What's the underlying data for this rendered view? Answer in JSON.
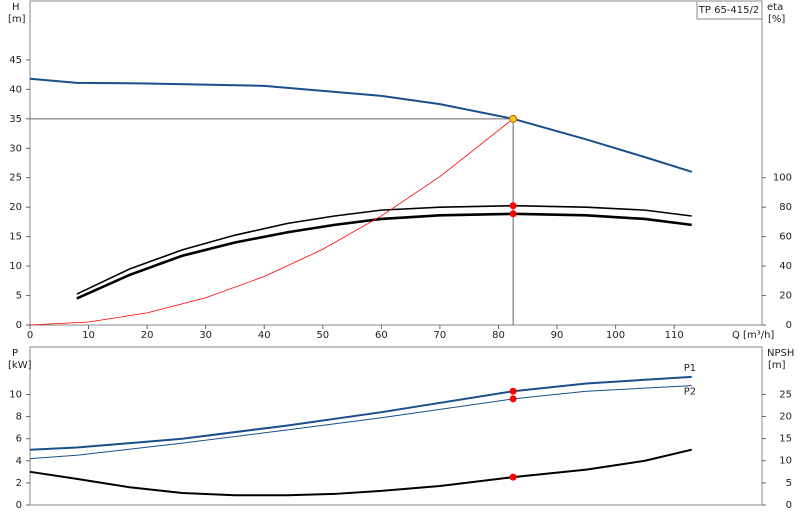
{
  "chart_data": [
    {
      "type": "line",
      "title": "TP 65-415/2",
      "xlabel": "Q [m³/h]",
      "ylabel": "H",
      "yunit": "[m]",
      "y2label": "eta",
      "y2unit": "[%]",
      "xlim": [
        0,
        125
      ],
      "xticks": [
        0,
        10,
        20,
        30,
        40,
        50,
        60,
        70,
        80,
        90,
        100,
        110
      ],
      "ylim": [
        0,
        55
      ],
      "yticks": [
        0,
        5,
        10,
        15,
        20,
        25,
        30,
        35,
        40,
        45
      ],
      "y2lim": [
        0,
        220
      ],
      "y2ticks": [
        0,
        20,
        40,
        60,
        80,
        100
      ],
      "series": [
        {
          "color": "#1a4f8b",
          "x": [
            0,
            8,
            20,
            40,
            60,
            70,
            82.5,
            95,
            105,
            113
          ],
          "values": [
            41.8,
            41.1,
            41,
            40.6,
            38.9,
            37.5,
            35,
            31.5,
            28.5,
            26
          ]
        },
        {
          "color": "#000000",
          "axis": "y2",
          "x": [
            8,
            17,
            26,
            35,
            44,
            52,
            60,
            70,
            82.5,
            95,
            105,
            113
          ],
          "values": [
            21,
            38,
            51,
            61,
            69,
            74,
            78,
            80,
            81,
            80,
            78,
            74
          ]
        },
        {
          "color": "#000000",
          "axis": "y2",
          "x": [
            8,
            17,
            26,
            35,
            44,
            52,
            60,
            70,
            82.5,
            95,
            105,
            113
          ],
          "values": [
            18,
            34,
            47,
            56,
            63,
            68,
            72,
            74.5,
            75.5,
            74.5,
            72,
            68
          ]
        },
        {
          "color": "#ff0000",
          "x": [
            0,
            10,
            20,
            30,
            40,
            50,
            60,
            70,
            82.5
          ],
          "values": [
            0,
            0.51,
            2.06,
            4.63,
            8.23,
            12.86,
            18.51,
            25.2,
            35
          ]
        }
      ],
      "points": [
        {
          "x": 82.5,
          "y": 35,
          "color": "#f5c518"
        },
        {
          "x": 82.5,
          "y": 81,
          "axis": "y2",
          "color": "#ff0000"
        },
        {
          "x": 82.5,
          "y": 75.5,
          "axis": "y2",
          "color": "#ff0000"
        }
      ]
    },
    {
      "type": "line",
      "ylabel": "P",
      "yunit": "[kW]",
      "y2label": "NPSH",
      "y2unit": "[m]",
      "xlim": [
        0,
        125
      ],
      "ylim": [
        0,
        14.3
      ],
      "yticks": [
        0,
        2,
        4,
        6,
        8,
        10
      ],
      "y2lim": [
        0,
        35.7
      ],
      "y2ticks": [
        0,
        5,
        10,
        15,
        20,
        25
      ],
      "series": [
        {
          "name": "P1",
          "color": "#1a4f8b",
          "x": [
            0,
            8,
            26,
            44,
            60,
            82.5,
            95,
            113
          ],
          "values": [
            5,
            5.2,
            6,
            7.2,
            8.4,
            10.3,
            11,
            11.6
          ]
        },
        {
          "name": "P2",
          "color": "#1a4f8b",
          "x": [
            0,
            8,
            26,
            44,
            60,
            82.5,
            95,
            113
          ],
          "values": [
            4.2,
            4.5,
            5.6,
            6.8,
            7.9,
            9.6,
            10.3,
            10.8
          ]
        },
        {
          "color": "#000000",
          "axis": "y2",
          "x": [
            0,
            8,
            17,
            26,
            35,
            44,
            52,
            60,
            70,
            82.5,
            95,
            105,
            113
          ],
          "values": [
            7.5,
            5.9,
            4,
            2.7,
            2.2,
            2.2,
            2.5,
            3.2,
            4.3,
            6.3,
            8,
            10,
            12.5
          ]
        }
      ],
      "points": [
        {
          "x": 82.5,
          "y": 10.3,
          "color": "#ff0000"
        },
        {
          "x": 82.5,
          "y": 9.6,
          "color": "#ff0000"
        },
        {
          "x": 82.5,
          "y": 6.3,
          "axis": "y2",
          "color": "#ff0000"
        }
      ]
    }
  ]
}
